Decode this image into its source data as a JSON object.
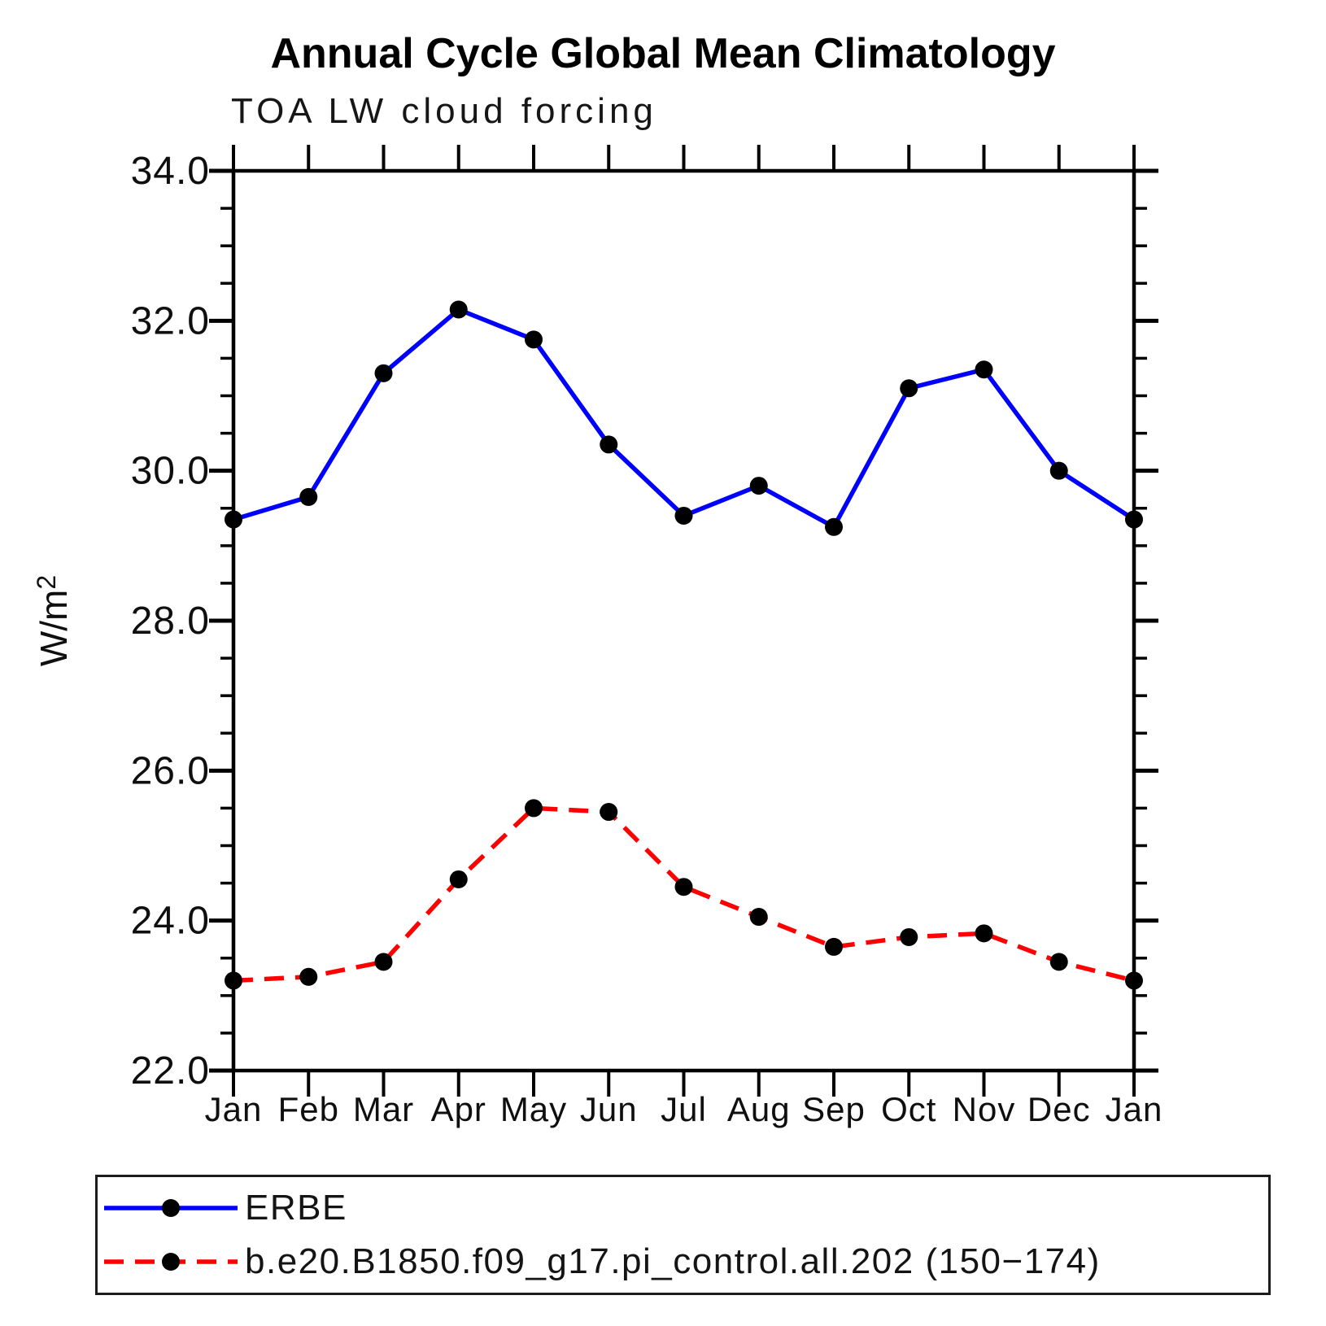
{
  "chart_data": {
    "type": "line",
    "title": "Annual Cycle Global Mean Climatology",
    "subtitle": "TOA LW cloud forcing",
    "ylabel": "W/m²",
    "ylabel_base": "W/m",
    "ylabel_exponent": "2",
    "categories": [
      "Jan",
      "Feb",
      "Mar",
      "Apr",
      "May",
      "Jun",
      "Jul",
      "Aug",
      "Sep",
      "Oct",
      "Nov",
      "Dec",
      "Jan"
    ],
    "ylim": [
      22.0,
      34.0
    ],
    "ytick_interval_major": 2.0,
    "ytick_interval_minor": 0.5,
    "ytick_labels": [
      "22.0",
      "24.0",
      "26.0",
      "28.0",
      "30.0",
      "32.0",
      "34.0"
    ],
    "grid": false,
    "legend_position": "bottom",
    "axis_color": "#000000",
    "marker_color": "#000000",
    "marker_shape": "circle",
    "series": [
      {
        "name": "ERBE",
        "color": "#0000ff",
        "line_style": "solid",
        "values": [
          29.35,
          29.65,
          31.3,
          32.15,
          31.75,
          30.35,
          29.4,
          29.8,
          29.25,
          31.1,
          31.35,
          30.0,
          29.35
        ]
      },
      {
        "name": "b.e20.B1850.f09_g17.pi_control.all.202 (150−174)",
        "color": "#ff0000",
        "line_style": "dashed",
        "values": [
          23.2,
          23.25,
          23.45,
          24.55,
          25.5,
          25.45,
          24.45,
          24.05,
          23.65,
          23.78,
          23.83,
          23.45,
          23.2
        ]
      }
    ]
  }
}
